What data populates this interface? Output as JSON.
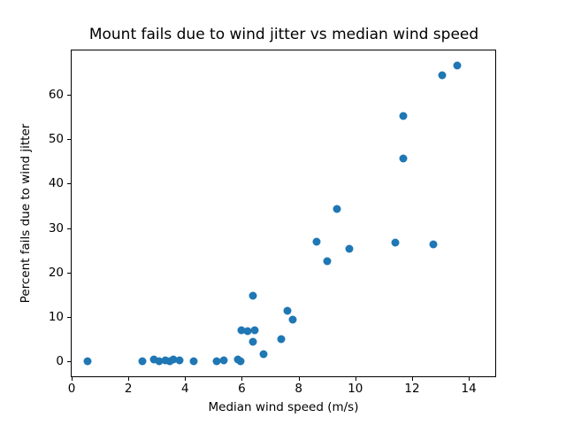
{
  "chart_data": {
    "type": "scatter",
    "title": "Mount fails due to wind jitter vs median wind speed",
    "xlabel": "Median wind speed (m/s)",
    "ylabel": "Percent fails due to wind jitter",
    "xlim": [
      0,
      14.9
    ],
    "ylim": [
      -3.1,
      69.9
    ],
    "xticks": [
      0,
      2,
      4,
      6,
      8,
      10,
      12,
      14
    ],
    "yticks": [
      0,
      10,
      20,
      30,
      40,
      50,
      60
    ],
    "grid": false,
    "legend": "none",
    "marker_color": "#1f77b4",
    "points": [
      [
        0.55,
        0.0
      ],
      [
        2.5,
        0.0
      ],
      [
        2.9,
        0.5
      ],
      [
        3.1,
        0.0
      ],
      [
        3.3,
        0.2
      ],
      [
        3.45,
        0.0
      ],
      [
        3.6,
        0.5
      ],
      [
        3.8,
        0.3
      ],
      [
        4.3,
        0.0
      ],
      [
        5.1,
        0.0
      ],
      [
        5.35,
        0.3
      ],
      [
        5.85,
        0.5
      ],
      [
        5.95,
        0.0
      ],
      [
        6.0,
        7.0
      ],
      [
        6.2,
        6.9
      ],
      [
        6.45,
        7.1
      ],
      [
        6.4,
        4.5
      ],
      [
        6.4,
        14.8
      ],
      [
        6.75,
        1.7
      ],
      [
        7.4,
        5.0
      ],
      [
        7.6,
        11.4
      ],
      [
        7.8,
        9.4
      ],
      [
        8.65,
        27.0
      ],
      [
        9.0,
        22.5
      ],
      [
        9.35,
        34.2
      ],
      [
        9.8,
        25.3
      ],
      [
        11.4,
        26.7
      ],
      [
        11.7,
        45.6
      ],
      [
        11.7,
        55.2
      ],
      [
        12.75,
        26.4
      ],
      [
        13.05,
        64.4
      ],
      [
        13.6,
        66.5
      ]
    ]
  }
}
